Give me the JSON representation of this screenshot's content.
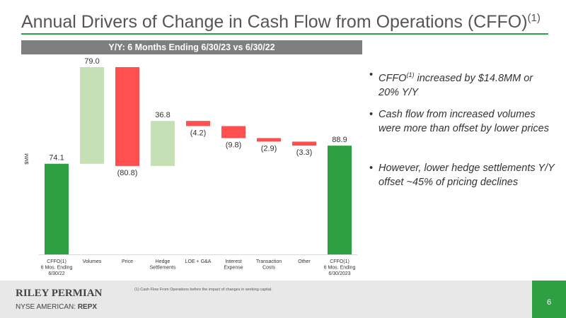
{
  "header": {
    "title": "Annual Drivers of Change in Cash Flow from Operations (CFFO)",
    "title_note": "(1)"
  },
  "chart_data": {
    "type": "waterfall",
    "title": "Y/Y: 6 Months Ending 6/30/23 vs 6/30/22",
    "y_label": "$MM",
    "categories": [
      [
        "CFFO(1)",
        "6 Mos. Ending",
        "6/30/22"
      ],
      [
        "Volumes"
      ],
      [
        "Price"
      ],
      [
        "Hedge",
        "Settlements"
      ],
      [
        "LOE + G&A"
      ],
      [
        "Interest",
        "Expense"
      ],
      [
        "Transaction",
        "Costs"
      ],
      [
        "Other"
      ],
      [
        "CFFO(1)",
        "6 Mos. Ending",
        "6/30/2023"
      ]
    ],
    "values": [
      74.1,
      79.0,
      -80.8,
      36.8,
      -4.2,
      -9.8,
      -2.9,
      -3.3,
      88.9
    ],
    "value_labels": [
      "74.1",
      "79.0",
      "(80.8)",
      "36.8",
      "(4.2)",
      "(9.8)",
      "(2.9)",
      "(3.3)",
      "88.9"
    ],
    "kinds": [
      "total",
      "increase",
      "decrease",
      "increase",
      "decrease",
      "decrease",
      "decrease",
      "decrease",
      "total"
    ],
    "colors": {
      "total": "#2ea043",
      "increase": "#c5e0b4",
      "decrease": "#ff4f4f"
    }
  },
  "bullets": [
    {
      "lead": "CFFO",
      "note": "(1)",
      "text": " increased by $14.8MM or 20% Y/Y"
    },
    {
      "text": "Cash flow from increased volumes were more than offset by lower prices"
    },
    {
      "text": "However, lower hedge settlements Y/Y offset ~45% of pricing declines"
    }
  ],
  "footnote": "(1)   Cash Flow From Operations before the impact of changes in working capital.",
  "footer": {
    "company": "RILEY PERMIAN",
    "exchange": "NYSE AMERICAN: ",
    "ticker": "REPX",
    "page": "6"
  }
}
